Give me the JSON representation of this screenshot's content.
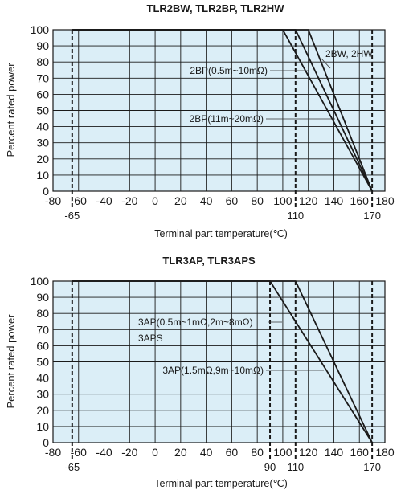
{
  "chart_data": [
    {
      "type": "line",
      "title": "TLR2BW, TLR2BP, TLR2HW",
      "xlabel": "Terminal part temperature(℃)",
      "ylabel": "Percent rated power",
      "xlim": [
        -80,
        180
      ],
      "ylim": [
        0,
        100
      ],
      "x_ticks": [
        -80,
        -60,
        -40,
        -20,
        0,
        20,
        40,
        60,
        80,
        100,
        120,
        140,
        160,
        180
      ],
      "y_ticks": [
        0,
        10,
        20,
        30,
        40,
        50,
        60,
        70,
        80,
        90,
        100
      ],
      "grid": true,
      "reference_lines": [
        {
          "x": -65,
          "label": "-65"
        },
        {
          "x": 110,
          "label": "110"
        },
        {
          "x": 170,
          "label": "170"
        }
      ],
      "series": [
        {
          "name": "2BP(0.5m~10mΩ)",
          "x": [
            -65,
            100,
            170
          ],
          "y": [
            100,
            100,
            0
          ]
        },
        {
          "name": "2BP(11m~20mΩ)",
          "x": [
            -65,
            110,
            170
          ],
          "y": [
            100,
            100,
            0
          ]
        },
        {
          "name": "2BW, 2HW",
          "x": [
            -65,
            120,
            170
          ],
          "y": [
            100,
            100,
            0
          ]
        }
      ]
    },
    {
      "type": "line",
      "title": "TLR3AP, TLR3APS",
      "xlabel": "Terminal part temperature(℃)",
      "ylabel": "Percent rated power",
      "xlim": [
        -80,
        180
      ],
      "ylim": [
        0,
        100
      ],
      "x_ticks": [
        -80,
        -60,
        -40,
        -20,
        0,
        20,
        40,
        60,
        80,
        100,
        120,
        140,
        160,
        180
      ],
      "y_ticks": [
        0,
        10,
        20,
        30,
        40,
        50,
        60,
        70,
        80,
        90,
        100
      ],
      "grid": true,
      "reference_lines": [
        {
          "x": -65,
          "label": "-65"
        },
        {
          "x": 90,
          "label": "90"
        },
        {
          "x": 110,
          "label": "110"
        },
        {
          "x": 170,
          "label": "170"
        }
      ],
      "series": [
        {
          "name": "3AP(0.5m~1mΩ,2m~8mΩ)\n3APS",
          "x": [
            -65,
            90,
            170
          ],
          "y": [
            100,
            100,
            0
          ]
        },
        {
          "name": "3AP(1.5mΩ,9m~10mΩ)",
          "x": [
            -65,
            110,
            170
          ],
          "y": [
            100,
            100,
            0
          ]
        }
      ]
    }
  ]
}
